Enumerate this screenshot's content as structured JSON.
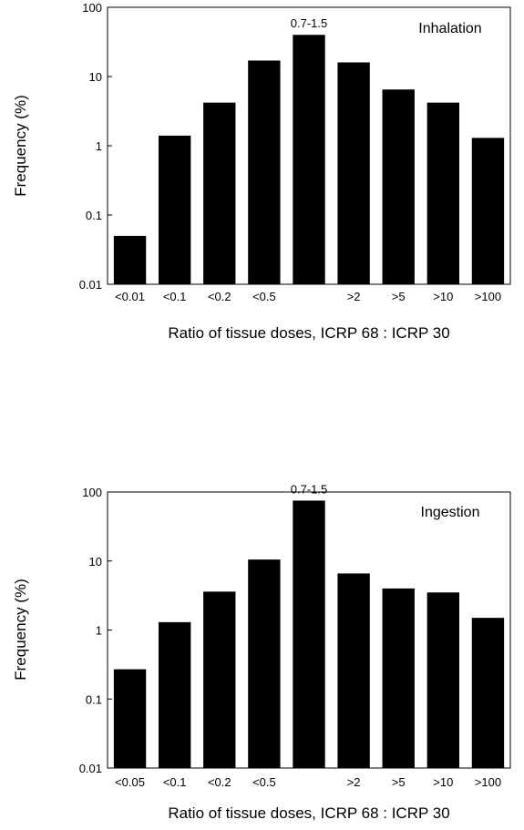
{
  "chart_data": [
    {
      "type": "bar",
      "title": "Inhalation",
      "xlabel": "Ratio of tissue doses, ICRP 68 : ICRP 30",
      "ylabel": "Frequency (%)",
      "yscale": "log",
      "ylim": [
        0.01,
        100
      ],
      "yticks": [
        "100",
        "10",
        "1",
        "0.1",
        "0.01"
      ],
      "yticks_values": [
        100,
        10,
        1,
        0.1,
        0.01
      ],
      "categories": [
        "<0.01",
        "<0.1",
        "<0.2",
        "<0.5",
        "",
        ">2",
        ">5",
        ">10",
        ">100"
      ],
      "values": [
        0.05,
        1.4,
        4.2,
        17,
        40,
        16,
        6.5,
        4.2,
        1.3
      ],
      "annotations": [
        {
          "category_index": 4,
          "text": "0.7-1.5"
        }
      ],
      "grid": false,
      "bar_color": "#000000"
    },
    {
      "type": "bar",
      "title": "Ingestion",
      "xlabel": "Ratio of tissue doses, ICRP 68 : ICRP 30",
      "ylabel": "Frequency (%)",
      "yscale": "log",
      "ylim": [
        0.01,
        100
      ],
      "yticks": [
        "100",
        "10",
        "1",
        "0.1",
        "0.01"
      ],
      "yticks_values": [
        100,
        10,
        1,
        0.1,
        0.01
      ],
      "categories": [
        "<0.05",
        "<0.1",
        "<0.2",
        "<0.5",
        "",
        ">2",
        ">5",
        ">10",
        ">100"
      ],
      "values": [
        0.27,
        1.3,
        3.6,
        10.5,
        75,
        6.6,
        4.0,
        3.5,
        1.5
      ],
      "annotations": [
        {
          "category_index": 4,
          "text": "0.7-1.5"
        }
      ],
      "grid": false,
      "bar_color": "#000000"
    }
  ]
}
